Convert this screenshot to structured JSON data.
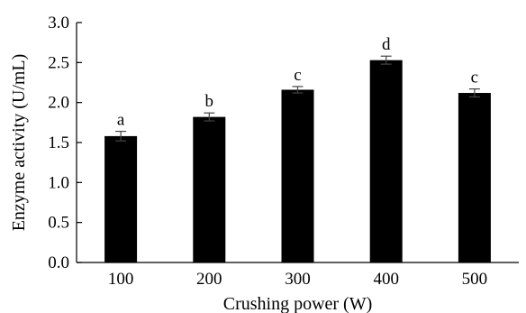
{
  "chart_data": {
    "type": "bar",
    "title": "",
    "xlabel": "Crushing power (W)",
    "ylabel": "Enzyme activity (U/mL)",
    "categories": [
      "100",
      "200",
      "300",
      "400",
      "500"
    ],
    "values": [
      1.58,
      1.82,
      2.16,
      2.53,
      2.12
    ],
    "errors": [
      0.06,
      0.05,
      0.04,
      0.05,
      0.05
    ],
    "annotations": [
      "a",
      "b",
      "c",
      "d",
      "c"
    ],
    "ylim": [
      0,
      3.0
    ],
    "yticks": [
      0.0,
      0.5,
      1.0,
      1.5,
      2.0,
      2.5,
      3.0
    ],
    "ytick_labels": [
      "0.0",
      "0.5",
      "1.0",
      "1.5",
      "2.0",
      "2.5",
      "3.0"
    ],
    "grid": false,
    "legend": "none",
    "bar_color": "#000000"
  }
}
